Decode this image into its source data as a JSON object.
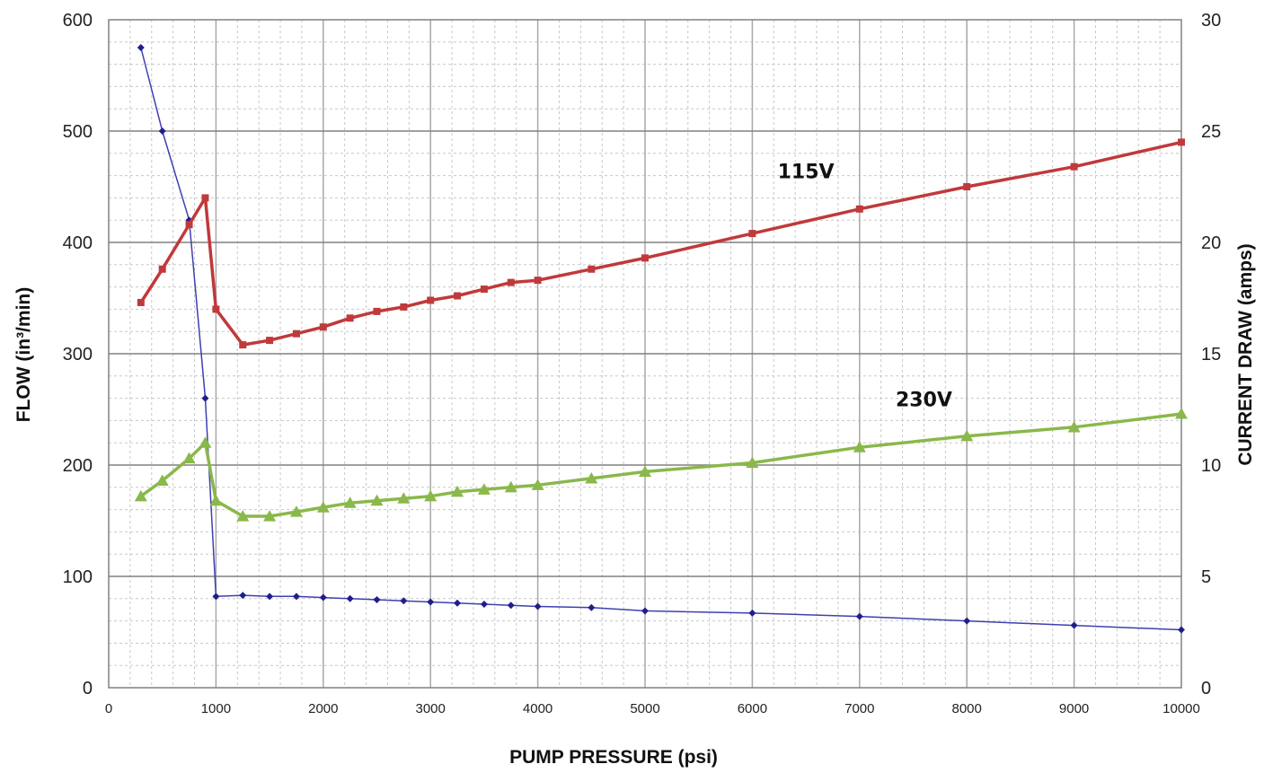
{
  "chart_data": {
    "type": "line",
    "xlabel": "PUMP PRESSURE (psi)",
    "ylabel_left": "FLOW (in³/min)",
    "ylabel_right": "CURRENT DRAW (amps)",
    "xlim": [
      0,
      10000
    ],
    "ylim_left": [
      0,
      600
    ],
    "ylim_right": [
      0,
      30
    ],
    "x_ticks": [
      0,
      1000,
      2000,
      3000,
      4000,
      5000,
      6000,
      7000,
      8000,
      9000,
      10000
    ],
    "y_ticks_left": [
      0,
      100,
      200,
      300,
      400,
      500,
      600
    ],
    "y_ticks_right": [
      0,
      5,
      10,
      15,
      20,
      25,
      30
    ],
    "grid": true,
    "series": [
      {
        "name": "",
        "axis": "left",
        "color": "#3f3fb0",
        "marker": "diamond",
        "x": [
          300,
          500,
          750,
          900,
          1000,
          1250,
          1500,
          1750,
          2000,
          2250,
          2500,
          2750,
          3000,
          3250,
          3500,
          3750,
          4000,
          4500,
          5000,
          6000,
          7000,
          8000,
          9000,
          10000
        ],
        "y": [
          575,
          500,
          420,
          260,
          82,
          83,
          82,
          82,
          81,
          80,
          79,
          78,
          77,
          76,
          75,
          74,
          73,
          72,
          69,
          67,
          64,
          60,
          56,
          52
        ]
      },
      {
        "name": "115V",
        "axis": "right",
        "color": "#c0393b",
        "marker": "square",
        "x": [
          300,
          500,
          750,
          900,
          1000,
          1250,
          1500,
          1750,
          2000,
          2250,
          2500,
          2750,
          3000,
          3250,
          3500,
          3750,
          4000,
          4500,
          5000,
          6000,
          7000,
          8000,
          9000,
          10000
        ],
        "y": [
          17.3,
          18.8,
          20.8,
          22.0,
          17.0,
          15.4,
          15.6,
          15.9,
          16.2,
          16.6,
          16.9,
          17.1,
          17.4,
          17.6,
          17.9,
          18.2,
          18.3,
          18.8,
          19.3,
          20.4,
          21.5,
          22.5,
          23.4,
          24.5
        ]
      },
      {
        "name": "230V",
        "axis": "right",
        "color": "#8ab84a",
        "marker": "triangle",
        "x": [
          300,
          500,
          750,
          900,
          1000,
          1250,
          1500,
          1750,
          2000,
          2250,
          2500,
          2750,
          3000,
          3250,
          3500,
          3750,
          4000,
          4500,
          5000,
          6000,
          7000,
          8000,
          9000,
          10000
        ],
        "y": [
          8.6,
          9.3,
          10.3,
          11.0,
          8.4,
          7.7,
          7.7,
          7.9,
          8.1,
          8.3,
          8.4,
          8.5,
          8.6,
          8.8,
          8.9,
          9.0,
          9.1,
          9.4,
          9.7,
          10.1,
          10.8,
          11.3,
          11.7,
          12.3
        ]
      }
    ]
  }
}
